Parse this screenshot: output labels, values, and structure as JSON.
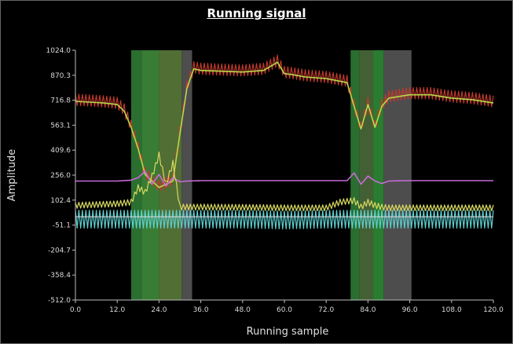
{
  "chart_data": {
    "type": "line",
    "title": "Running signal",
    "xlabel": "Running sample",
    "ylabel": "Amplitude",
    "xlim": [
      0,
      120
    ],
    "ylim": [
      -512,
      1024
    ],
    "x_ticks": [
      "0.0",
      "12.0",
      "24.0",
      "36.0",
      "48.0",
      "60.0",
      "72.0",
      "84.0",
      "96.0",
      "108.0",
      "120.0"
    ],
    "y_ticks": [
      "1024.0",
      "870.3",
      "716.8",
      "563.1",
      "409.6",
      "256.0",
      "102.4",
      "-51.1",
      "-204.7",
      "-358.4",
      "-512.0"
    ],
    "x_tick_values": [
      0,
      12,
      24,
      36,
      48,
      60,
      72,
      84,
      96,
      108,
      120
    ],
    "y_tick_values": [
      1024,
      870.3,
      716.8,
      563.1,
      409.6,
      256,
      102.4,
      -51.1,
      -204.7,
      -358.4,
      -512
    ],
    "grid": false,
    "highlight_regions": [
      {
        "x0": 16.0,
        "x1": 19.0,
        "color": "#2f7a35"
      },
      {
        "x0": 19.0,
        "x1": 24.0,
        "color": "#3f8a3a"
      },
      {
        "x0": 24.0,
        "x1": 30.5,
        "color": "#5a7a3a"
      },
      {
        "x0": 30.5,
        "x1": 33.5,
        "color": "#555555"
      },
      {
        "x0": 79.0,
        "x1": 81.5,
        "color": "#2f7a35"
      },
      {
        "x0": 81.5,
        "x1": 85.5,
        "color": "#4a6a3a"
      },
      {
        "x0": 85.5,
        "x1": 88.5,
        "color": "#2f8a35"
      },
      {
        "x0": 88.5,
        "x1": 96.5,
        "color": "#555555"
      }
    ],
    "series": [
      {
        "color": "#c0392b",
        "x": [
          0,
          4,
          8,
          12,
          14,
          16,
          18,
          20,
          24,
          28,
          30,
          32,
          34,
          36,
          42,
          48,
          54,
          58,
          60,
          62,
          66,
          72,
          78,
          80,
          82,
          84,
          86,
          88,
          90,
          96,
          102,
          108,
          114,
          120
        ],
        "y": [
          720,
          715,
          710,
          700,
          660,
          560,
          430,
          270,
          190,
          230,
          520,
          800,
          920,
          910,
          905,
          900,
          910,
          960,
          890,
          885,
          870,
          860,
          835,
          690,
          550,
          700,
          560,
          690,
          740,
          760,
          760,
          740,
          730,
          710
        ],
        "oscillation": 35
      },
      {
        "color": "#b7d84b",
        "x": [
          0,
          4,
          8,
          12,
          14,
          16,
          18,
          20,
          24,
          28,
          30,
          32,
          34,
          36,
          42,
          48,
          54,
          58,
          60,
          62,
          66,
          72,
          78,
          80,
          82,
          84,
          86,
          88,
          90,
          96,
          102,
          108,
          114,
          120
        ],
        "y": [
          710,
          705,
          700,
          690,
          650,
          550,
          420,
          260,
          180,
          220,
          510,
          790,
          910,
          900,
          895,
          890,
          900,
          950,
          880,
          875,
          860,
          850,
          825,
          680,
          540,
          690,
          550,
          680,
          730,
          750,
          750,
          730,
          720,
          700
        ]
      },
      {
        "color": "#c86bd8",
        "x": [
          0,
          12,
          16,
          18,
          20,
          22,
          24,
          26,
          28,
          30,
          32,
          36,
          48,
          60,
          72,
          78,
          80,
          82,
          84,
          86,
          88,
          90,
          96,
          108,
          120
        ],
        "y": [
          220,
          220,
          225,
          240,
          280,
          200,
          260,
          190,
          240,
          215,
          220,
          222,
          222,
          222,
          222,
          222,
          270,
          200,
          250,
          220,
          205,
          220,
          222,
          222,
          222
        ]
      },
      {
        "color": "#d8d860",
        "x": [
          0,
          6,
          12,
          16,
          18,
          20,
          22,
          24,
          26,
          28,
          30,
          32,
          36,
          48,
          60,
          72,
          76,
          80,
          82,
          84,
          86,
          88,
          90,
          96,
          108,
          120
        ],
        "y": [
          70,
          75,
          80,
          90,
          180,
          150,
          250,
          380,
          200,
          330,
          60,
          60,
          60,
          58,
          55,
          55,
          90,
          100,
          60,
          90,
          70,
          60,
          55,
          55,
          55,
          55
        ],
        "oscillation": 18
      },
      {
        "color": "#5fd0d0",
        "x": [
          0,
          12,
          24,
          36,
          48,
          60,
          72,
          84,
          96,
          108,
          120
        ],
        "y": [
          -15,
          -15,
          -15,
          -15,
          -15,
          -20,
          -15,
          -15,
          -15,
          -15,
          -15
        ],
        "oscillation": 55
      }
    ],
    "baseline": 0
  }
}
